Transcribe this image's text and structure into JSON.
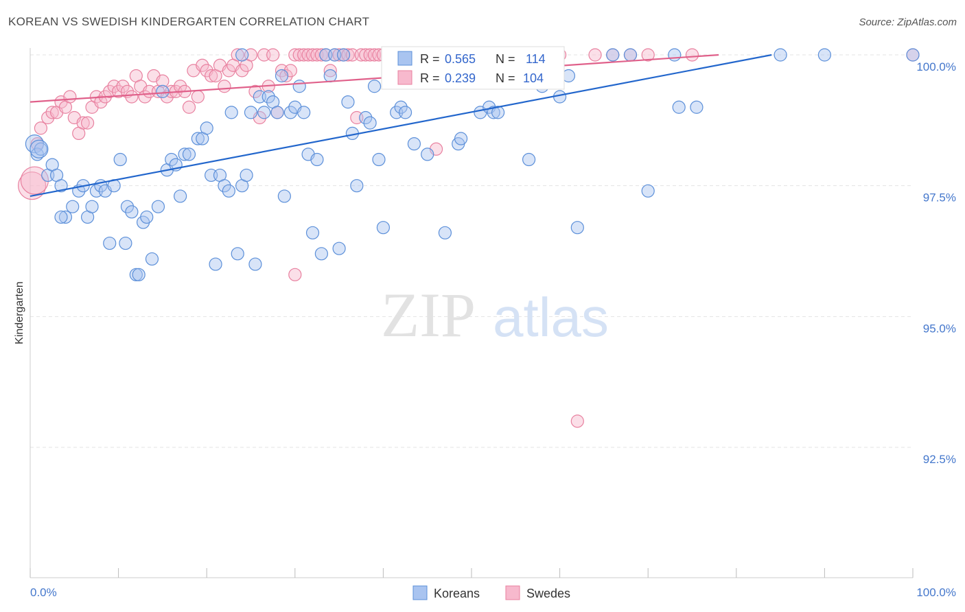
{
  "title": "KOREAN VS SWEDISH KINDERGARTEN CORRELATION CHART",
  "source": "Source: ZipAtlas.com",
  "watermark": {
    "zip": "ZIP",
    "atlas": "atlas"
  },
  "colors": {
    "koreans_fill": "#a9c4f0",
    "koreans_stroke": "#5b8fd9",
    "koreans_line": "#2266cc",
    "swedes_fill": "#f7b9cd",
    "swedes_stroke": "#e8809f",
    "swedes_line": "#e0608a",
    "grid": "#e3e3e3",
    "label": "#4477cc"
  },
  "legend": {
    "koreans": {
      "r_label": "R =",
      "r_value": "0.565",
      "n_label": "N =",
      "n_value": "114"
    },
    "swedes": {
      "r_label": "R =",
      "r_value": "0.239",
      "n_label": "N =",
      "n_value": "104"
    }
  },
  "chart_data": {
    "type": "scatter",
    "title": "KOREAN VS SWEDISH KINDERGARTEN CORRELATION CHART",
    "xlabel": "",
    "ylabel": "Kindergarten",
    "xlim": [
      0,
      100
    ],
    "ylim": [
      90.2,
      100.35
    ],
    "x_tick_labels": [
      "0.0%",
      "100.0%"
    ],
    "y_ticks": [
      92.5,
      95.0,
      97.5,
      100.0
    ],
    "y_tick_labels": [
      "92.5%",
      "95.0%",
      "97.5%",
      "100.0%"
    ],
    "grid": true,
    "legend_position": "top-center",
    "series": [
      {
        "name": "Koreans",
        "r": 0.565,
        "n": 114,
        "trend": {
          "x": [
            0,
            84
          ],
          "y": [
            97.3,
            100.0
          ]
        },
        "points": [
          [
            0.5,
            98.3
          ],
          [
            0.8,
            98.1
          ],
          [
            1.2,
            98.2
          ],
          [
            2.0,
            97.7
          ],
          [
            2.5,
            97.9
          ],
          [
            3.0,
            97.7
          ],
          [
            3.5,
            97.5
          ],
          [
            4.0,
            96.9
          ],
          [
            4.8,
            97.1
          ],
          [
            5.5,
            97.4
          ],
          [
            6.0,
            97.5
          ],
          [
            6.5,
            96.9
          ],
          [
            7.0,
            97.1
          ],
          [
            7.5,
            97.4
          ],
          [
            8.0,
            97.5
          ],
          [
            8.5,
            97.4
          ],
          [
            9.0,
            96.4
          ],
          [
            9.5,
            97.5
          ],
          [
            10.2,
            98.0
          ],
          [
            10.8,
            96.4
          ],
          [
            11.0,
            97.1
          ],
          [
            11.5,
            97.0
          ],
          [
            12.0,
            95.8
          ],
          [
            12.3,
            95.8
          ],
          [
            12.8,
            96.8
          ],
          [
            13.2,
            96.9
          ],
          [
            13.8,
            96.1
          ],
          [
            14.5,
            97.1
          ],
          [
            15.0,
            99.3
          ],
          [
            15.5,
            97.8
          ],
          [
            16.0,
            98.0
          ],
          [
            16.5,
            97.9
          ],
          [
            17.0,
            97.3
          ],
          [
            17.5,
            98.1
          ],
          [
            18.0,
            98.1
          ],
          [
            19.0,
            98.4
          ],
          [
            19.5,
            98.4
          ],
          [
            20.0,
            98.6
          ],
          [
            20.5,
            97.7
          ],
          [
            21.0,
            96.0
          ],
          [
            21.5,
            97.7
          ],
          [
            22.0,
            97.5
          ],
          [
            22.5,
            97.4
          ],
          [
            22.8,
            98.9
          ],
          [
            23.5,
            96.2
          ],
          [
            24.0,
            97.5
          ],
          [
            24.5,
            97.7
          ],
          [
            25.0,
            98.9
          ],
          [
            25.5,
            96.0
          ],
          [
            26.0,
            99.2
          ],
          [
            26.5,
            98.9
          ],
          [
            27.0,
            99.2
          ],
          [
            27.5,
            99.1
          ],
          [
            28.0,
            98.9
          ],
          [
            28.5,
            99.6
          ],
          [
            28.8,
            97.3
          ],
          [
            29.5,
            98.9
          ],
          [
            30.0,
            99.0
          ],
          [
            30.5,
            99.4
          ],
          [
            31.0,
            98.9
          ],
          [
            31.5,
            98.1
          ],
          [
            32.0,
            96.6
          ],
          [
            32.5,
            98.0
          ],
          [
            33.0,
            96.2
          ],
          [
            33.5,
            100.0
          ],
          [
            34.0,
            99.6
          ],
          [
            34.5,
            100.0
          ],
          [
            35.0,
            96.3
          ],
          [
            35.5,
            100.0
          ],
          [
            36.0,
            99.1
          ],
          [
            36.5,
            98.5
          ],
          [
            37.0,
            97.5
          ],
          [
            38.0,
            98.8
          ],
          [
            38.5,
            98.7
          ],
          [
            39.0,
            99.4
          ],
          [
            39.5,
            98.0
          ],
          [
            40.0,
            96.7
          ],
          [
            41.0,
            100.0
          ],
          [
            41.5,
            98.9
          ],
          [
            42.0,
            99.0
          ],
          [
            42.5,
            98.9
          ],
          [
            43.0,
            100.0
          ],
          [
            43.5,
            98.3
          ],
          [
            45.0,
            98.1
          ],
          [
            46.0,
            100.0
          ],
          [
            47.0,
            96.6
          ],
          [
            48.0,
            100.0
          ],
          [
            48.5,
            98.3
          ],
          [
            48.8,
            98.4
          ],
          [
            50.0,
            100.0
          ],
          [
            51.0,
            98.9
          ],
          [
            52.0,
            99.0
          ],
          [
            52.5,
            98.9
          ],
          [
            53.0,
            98.9
          ],
          [
            55.0,
            100.0
          ],
          [
            56.5,
            98.0
          ],
          [
            57.0,
            100.0
          ],
          [
            58.0,
            99.4
          ],
          [
            58.5,
            99.6
          ],
          [
            60.0,
            99.2
          ],
          [
            61.0,
            99.6
          ],
          [
            62.0,
            96.7
          ],
          [
            66.0,
            100.0
          ],
          [
            68.0,
            100.0
          ],
          [
            70.0,
            97.4
          ],
          [
            73.0,
            100.0
          ],
          [
            73.5,
            99.0
          ],
          [
            75.5,
            99.0
          ],
          [
            85.0,
            100.0
          ],
          [
            90.0,
            100.0
          ],
          [
            100.0,
            100.0
          ],
          [
            1.0,
            98.2
          ],
          [
            3.5,
            96.9
          ],
          [
            24.0,
            100.0
          ]
        ]
      },
      {
        "name": "Swedes",
        "r": 0.239,
        "n": 104,
        "trend": {
          "x": [
            0,
            78
          ],
          "y": [
            99.1,
            100.0
          ]
        },
        "points": [
          [
            0.2,
            97.5
          ],
          [
            0.8,
            98.3
          ],
          [
            1.2,
            98.6
          ],
          [
            2.0,
            98.8
          ],
          [
            2.5,
            98.9
          ],
          [
            3.0,
            98.9
          ],
          [
            3.5,
            99.1
          ],
          [
            4.0,
            99.0
          ],
          [
            4.5,
            99.2
          ],
          [
            5.0,
            98.8
          ],
          [
            5.5,
            98.5
          ],
          [
            6.0,
            98.7
          ],
          [
            6.5,
            98.7
          ],
          [
            7.0,
            99.0
          ],
          [
            7.5,
            99.2
          ],
          [
            8.0,
            99.1
          ],
          [
            8.5,
            99.2
          ],
          [
            9.0,
            99.3
          ],
          [
            9.5,
            99.4
          ],
          [
            10.0,
            99.3
          ],
          [
            10.5,
            99.4
          ],
          [
            11.0,
            99.3
          ],
          [
            11.5,
            99.2
          ],
          [
            12.0,
            99.6
          ],
          [
            12.5,
            99.4
          ],
          [
            13.0,
            99.2
          ],
          [
            13.5,
            99.3
          ],
          [
            14.0,
            99.6
          ],
          [
            14.5,
            99.3
          ],
          [
            15.0,
            99.5
          ],
          [
            15.5,
            99.2
          ],
          [
            16.0,
            99.3
          ],
          [
            16.5,
            99.3
          ],
          [
            17.0,
            99.4
          ],
          [
            17.5,
            99.3
          ],
          [
            18.0,
            99.0
          ],
          [
            18.5,
            99.7
          ],
          [
            19.0,
            99.2
          ],
          [
            19.5,
            99.8
          ],
          [
            20.0,
            99.7
          ],
          [
            20.5,
            99.6
          ],
          [
            21.0,
            99.6
          ],
          [
            21.5,
            99.8
          ],
          [
            22.0,
            99.4
          ],
          [
            22.5,
            99.7
          ],
          [
            23.0,
            99.8
          ],
          [
            23.5,
            100.0
          ],
          [
            24.0,
            99.7
          ],
          [
            24.5,
            99.8
          ],
          [
            25.0,
            100.0
          ],
          [
            25.5,
            99.3
          ],
          [
            26.0,
            98.8
          ],
          [
            26.5,
            100.0
          ],
          [
            27.0,
            99.4
          ],
          [
            27.5,
            100.0
          ],
          [
            28.0,
            98.9
          ],
          [
            28.5,
            99.7
          ],
          [
            29.0,
            99.6
          ],
          [
            29.5,
            99.7
          ],
          [
            30.0,
            100.0
          ],
          [
            30.5,
            100.0
          ],
          [
            31.0,
            100.0
          ],
          [
            31.5,
            100.0
          ],
          [
            32.0,
            100.0
          ],
          [
            32.5,
            100.0
          ],
          [
            33.0,
            100.0
          ],
          [
            33.5,
            100.0
          ],
          [
            34.0,
            99.7
          ],
          [
            34.5,
            100.0
          ],
          [
            35.0,
            100.0
          ],
          [
            35.5,
            100.0
          ],
          [
            36.0,
            100.0
          ],
          [
            36.5,
            100.0
          ],
          [
            37.0,
            98.8
          ],
          [
            37.5,
            100.0
          ],
          [
            38.0,
            100.0
          ],
          [
            38.5,
            100.0
          ],
          [
            39.0,
            100.0
          ],
          [
            39.5,
            100.0
          ],
          [
            40.0,
            100.0
          ],
          [
            41.0,
            100.0
          ],
          [
            42.0,
            100.0
          ],
          [
            43.0,
            99.6
          ],
          [
            44.0,
            100.0
          ],
          [
            45.0,
            100.0
          ],
          [
            46.0,
            98.2
          ],
          [
            47.0,
            100.0
          ],
          [
            48.0,
            100.0
          ],
          [
            49.0,
            100.0
          ],
          [
            50.0,
            100.0
          ],
          [
            52.0,
            100.0
          ],
          [
            54.0,
            100.0
          ],
          [
            56.0,
            100.0
          ],
          [
            58.0,
            100.0
          ],
          [
            60.0,
            100.0
          ],
          [
            62.0,
            93.0
          ],
          [
            64.0,
            100.0
          ],
          [
            66.0,
            100.0
          ],
          [
            68.0,
            100.0
          ],
          [
            70.0,
            100.0
          ],
          [
            75.0,
            100.0
          ],
          [
            30.0,
            95.8
          ],
          [
            100.0,
            100.0
          ],
          [
            0.5,
            97.6
          ]
        ]
      }
    ]
  },
  "bottom_legend": {
    "koreans": "Koreans",
    "swedes": "Swedes"
  }
}
